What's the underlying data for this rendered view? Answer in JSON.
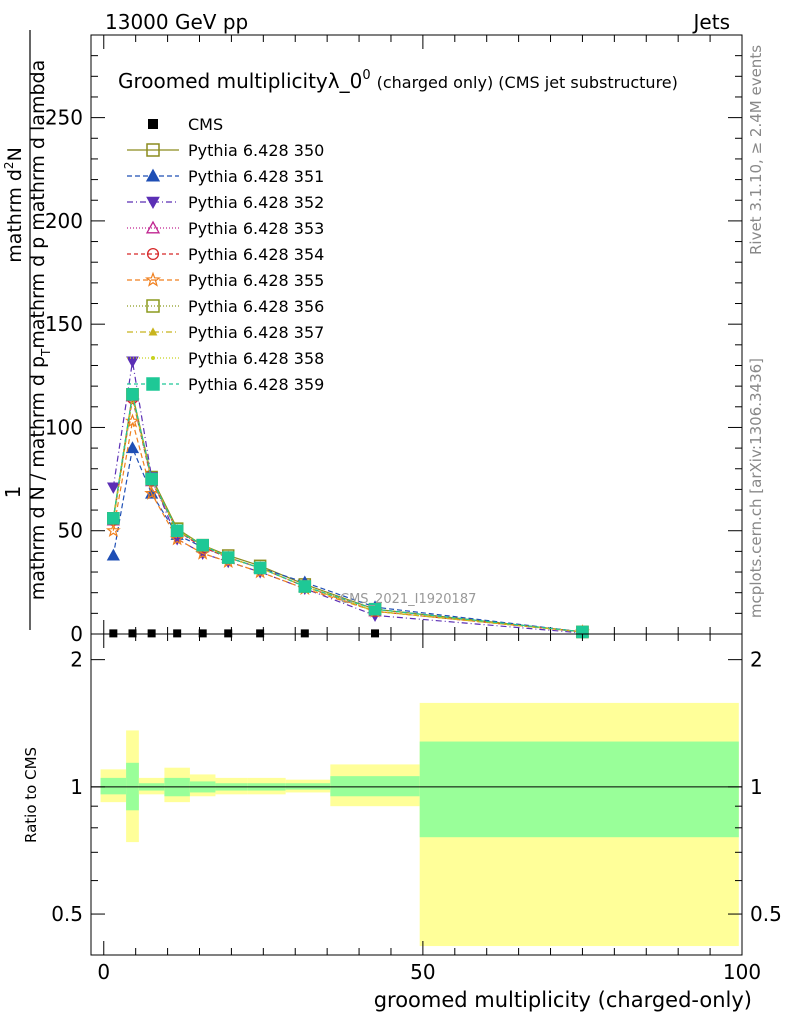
{
  "header": {
    "energy": "13000 GeV pp",
    "category": "Jets"
  },
  "side": {
    "rivet": "Rivet 3.1.10, ≥ 2.4M events",
    "mcplots": "mcplots.cern.ch [arXiv:1306.3436]"
  },
  "chart_data": [
    {
      "type": "line",
      "title": "Groomed multiplicityλ_0",
      "title_sup": "0",
      "title_tail": "(charged only) (CMS jet substructure)",
      "ylabel_numerator": "1",
      "ylabel_denominator": "mathrm d N / mathrm d p",
      "ylabel_denominator_sub": "T",
      "ylabel_denominator_tail": "mathrm d p",
      "ylabel_denominator_tail2": "mathrm d lambda",
      "ylabel_top": "mathrm d",
      "ylabel_top_sup": "2",
      "ylabel_top_tail": "N",
      "analysis_label": "CMS_2021_I1920187",
      "ylim": [
        0,
        290
      ],
      "y_ticks": [
        "0",
        "50",
        "100",
        "150",
        "200",
        "250"
      ],
      "x": [
        1.5,
        4.5,
        7.5,
        11.5,
        15.5,
        19.5,
        24.5,
        31.5,
        42.5,
        75
      ],
      "data": {
        "name": "CMS",
        "color": "#000000",
        "values": [
          0.3,
          0.3,
          0.3,
          0.3,
          0.3,
          0.3,
          0.3,
          0.3,
          0.3,
          0
        ]
      },
      "series": [
        {
          "name": "Pythia 6.428 350",
          "color": "#8c8c1e",
          "marker": "square-open",
          "dash": "",
          "values": [
            56,
            116,
            76,
            51,
            43,
            38,
            33,
            24,
            12,
            1
          ]
        },
        {
          "name": "Pythia 6.428 351",
          "color": "#1f4fb5",
          "marker": "triangle-up",
          "dash": "5,3",
          "values": [
            38,
            90,
            68,
            48,
            42,
            37,
            32,
            25,
            13,
            1
          ]
        },
        {
          "name": "Pythia 6.428 352",
          "color": "#5b2fb5",
          "marker": "triangle-down",
          "dash": "6,3,1,3",
          "values": [
            71,
            132,
            76,
            46,
            39,
            35,
            30,
            22,
            9,
            0.5
          ]
        },
        {
          "name": "Pythia 6.428 353",
          "color": "#c02590",
          "marker": "triangle-open",
          "dash": "1,2",
          "values": [
            55,
            115,
            74,
            50,
            42,
            37,
            32,
            23,
            11,
            1
          ]
        },
        {
          "name": "Pythia 6.428 354",
          "color": "#d62728",
          "marker": "circle-open",
          "dash": "4,3",
          "values": [
            55,
            114,
            74,
            50,
            42,
            37,
            32,
            23,
            11,
            1
          ]
        },
        {
          "name": "Pythia 6.428 355",
          "color": "#f07f1d",
          "marker": "star-open",
          "dash": "5,3",
          "values": [
            50,
            103,
            68,
            46,
            39,
            35,
            30,
            22,
            11,
            1
          ]
        },
        {
          "name": "Pythia 6.428 356",
          "color": "#8c9a1e",
          "marker": "square-open",
          "dash": "1,2",
          "values": [
            56,
            116,
            75,
            51,
            43,
            37,
            32,
            23,
            12,
            1
          ]
        },
        {
          "name": "Pythia 6.428 357",
          "color": "#c8b41e",
          "marker": "tri-small",
          "dash": "6,3,1,3",
          "values": [
            55,
            115,
            75,
            50,
            43,
            37,
            32,
            23,
            11,
            1
          ]
        },
        {
          "name": "Pythia 6.428 358",
          "color": "#c8d21e",
          "marker": "dot",
          "dash": "1,2",
          "values": [
            54,
            114,
            75,
            50,
            43,
            37,
            32,
            23,
            11,
            1
          ]
        },
        {
          "name": "Pythia 6.428 359",
          "color": "#1ec896",
          "marker": "square",
          "dash": "4,3",
          "values": [
            56,
            116,
            75,
            50,
            43,
            37,
            32,
            23,
            12,
            1
          ]
        }
      ]
    },
    {
      "type": "area",
      "ylabel": "Ratio to CMS",
      "xlabel": "groomed multiplicity (charged-only)",
      "xlim": [
        -2,
        100
      ],
      "ylim": [
        0.4,
        2.3
      ],
      "log_y": true,
      "y_ticks": [
        {
          "value": 0.5,
          "label": "0.5"
        },
        {
          "value": 1,
          "label": "1"
        },
        {
          "value": 2,
          "label": "2"
        }
      ],
      "x_ticks": [
        {
          "value": 0,
          "label": "0"
        },
        {
          "value": 50,
          "label": "50"
        },
        {
          "value": 100,
          "label": "100"
        }
      ],
      "bands": {
        "inner_color": "#99ff99",
        "outer_color": "#ffff99",
        "bins": [
          {
            "lo": -0.5,
            "hi": 3.5,
            "inner": [
              0.96,
              1.05
            ],
            "outer": [
              0.92,
              1.1
            ]
          },
          {
            "lo": 3.5,
            "hi": 5.5,
            "inner": [
              0.88,
              1.14
            ],
            "outer": [
              0.74,
              1.36
            ]
          },
          {
            "lo": 5.5,
            "hi": 9.5,
            "inner": [
              0.98,
              1.02
            ],
            "outer": [
              0.96,
              1.05
            ]
          },
          {
            "lo": 9.5,
            "hi": 13.5,
            "inner": [
              0.95,
              1.05
            ],
            "outer": [
              0.92,
              1.11
            ]
          },
          {
            "lo": 13.5,
            "hi": 17.5,
            "inner": [
              0.97,
              1.03
            ],
            "outer": [
              0.95,
              1.07
            ]
          },
          {
            "lo": 17.5,
            "hi": 22.5,
            "inner": [
              0.98,
              1.02
            ],
            "outer": [
              0.96,
              1.05
            ]
          },
          {
            "lo": 22.5,
            "hi": 28.5,
            "inner": [
              0.98,
              1.02
            ],
            "outer": [
              0.96,
              1.05
            ]
          },
          {
            "lo": 28.5,
            "hi": 35.5,
            "inner": [
              0.985,
              1.02
            ],
            "outer": [
              0.97,
              1.04
            ]
          },
          {
            "lo": 35.5,
            "hi": 49.5,
            "inner": [
              0.95,
              1.06
            ],
            "outer": [
              0.9,
              1.13
            ]
          },
          {
            "lo": 49.5,
            "hi": 99.5,
            "inner": [
              0.76,
              1.28
            ],
            "outer": [
              0.42,
              1.58
            ]
          }
        ]
      }
    }
  ]
}
